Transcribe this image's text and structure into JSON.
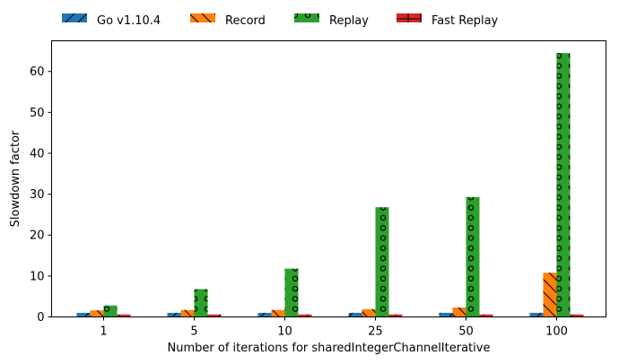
{
  "chart_data": {
    "type": "bar",
    "categories": [
      "1",
      "5",
      "10",
      "25",
      "50",
      "100"
    ],
    "series": [
      {
        "name": "Go v1.10.4",
        "values": [
          1,
          1,
          1,
          1,
          1,
          1
        ],
        "color": "#1f77b4",
        "hatch": "diagonal-forward"
      },
      {
        "name": "Record",
        "values": [
          1.6,
          1.7,
          1.7,
          1.9,
          2.3,
          10.8
        ],
        "color": "#ff7f0e",
        "hatch": "diagonal-back"
      },
      {
        "name": "Replay",
        "values": [
          2.8,
          6.8,
          11.8,
          26.8,
          29.3,
          64.5
        ],
        "color": "#2ca02c",
        "hatch": "circles"
      },
      {
        "name": "Fast Replay",
        "values": [
          0.6,
          0.6,
          0.6,
          0.6,
          0.6,
          0.6
        ],
        "color": "#d62728",
        "hatch": "plus"
      }
    ],
    "xlabel": "Number of iterations for sharedIntegerChannelIterative",
    "ylabel": "Slowdown factor",
    "ylim": [
      0,
      67.5
    ],
    "yticks": [
      0,
      10,
      20,
      30,
      40,
      50,
      60
    ],
    "grid": false,
    "legend_position": "top"
  }
}
